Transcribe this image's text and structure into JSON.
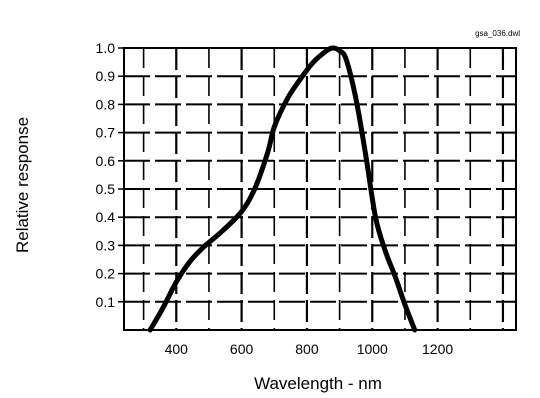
{
  "chart_data": {
    "type": "line",
    "file_tag": "gsa_036.dwl",
    "xlabel": "Wavelength - nm",
    "ylabel": "Relative response",
    "x_ticks": [
      400,
      600,
      800,
      1000,
      1200
    ],
    "y_ticks": [
      0.1,
      0.2,
      0.3,
      0.4,
      0.5,
      0.6,
      0.7,
      0.8,
      0.9,
      1.0
    ],
    "y_tick_labels": [
      "0.1",
      "0.2",
      "0.3",
      "0.4",
      "0.5",
      "0.6",
      "0.7",
      "0.8",
      "0.9",
      "1.0"
    ],
    "xlim": [
      240,
      1440
    ],
    "ylim": [
      0,
      1.0
    ],
    "grid": true,
    "series": [
      {
        "x": [
          320,
          360,
          400,
          440,
          480,
          540,
          600,
          640,
          680,
          700,
          740,
          780,
          820,
          860,
          880,
          900,
          920,
          950,
          980,
          1010,
          1040,
          1070,
          1100,
          1130
        ],
        "y": [
          0.0,
          0.08,
          0.17,
          0.24,
          0.29,
          0.35,
          0.42,
          0.5,
          0.63,
          0.72,
          0.82,
          0.89,
          0.95,
          0.99,
          1.0,
          0.99,
          0.96,
          0.82,
          0.62,
          0.4,
          0.28,
          0.19,
          0.09,
          0.0
        ]
      }
    ]
  }
}
